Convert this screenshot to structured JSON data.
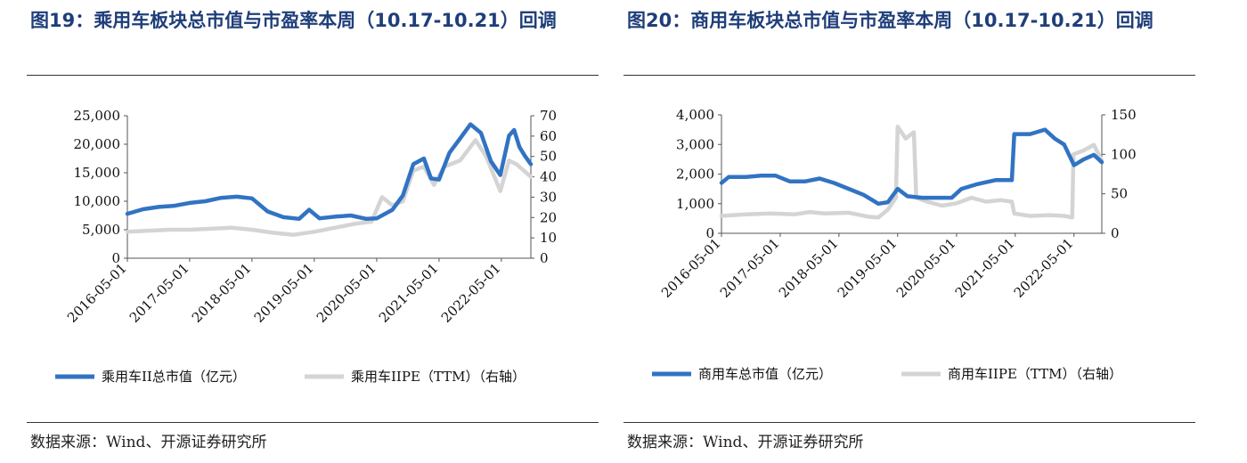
{
  "source": "数据来源：Wind、开源证券研究所",
  "colors": {
    "left_series": "#3173c3",
    "right_series": "#d4d4d4",
    "title": "#1f3e7a"
  },
  "chart_data": [
    {
      "type": "line",
      "title": "图19：乘用车板块总市值与市盈率本周（10.17-10.21）回调",
      "x_tick_labels": [
        "2016-05-01",
        "2017-05-01",
        "2018-05-01",
        "2019-05-01",
        "2020-05-01",
        "2021-05-01",
        "2022-05-01"
      ],
      "xlim": [
        "2016-05-01",
        "2022-10-21"
      ],
      "left_axis": {
        "ylim": [
          0,
          25000
        ],
        "tick_labels": [
          "0",
          "5,000",
          "10,000",
          "15,000",
          "20,000",
          "25,000"
        ]
      },
      "right_axis": {
        "ylim": [
          0,
          70
        ],
        "tick_labels": [
          "0",
          "10",
          "20",
          "30",
          "40",
          "50",
          "60",
          "70"
        ]
      },
      "legend": "bottom",
      "series": [
        {
          "name": "乘用车II总市值（亿元）",
          "axis": "left",
          "points": [
            [
              "2016-05-01",
              7800
            ],
            [
              "2016-08-01",
              8600
            ],
            [
              "2016-11-01",
              9000
            ],
            [
              "2017-02-01",
              9200
            ],
            [
              "2017-05-01",
              9700
            ],
            [
              "2017-08-01",
              10000
            ],
            [
              "2017-11-01",
              10600
            ],
            [
              "2018-02-01",
              10800
            ],
            [
              "2018-05-01",
              10500
            ],
            [
              "2018-08-01",
              8200
            ],
            [
              "2018-11-01",
              7200
            ],
            [
              "2019-02-01",
              6900
            ],
            [
              "2019-04-01",
              8500
            ],
            [
              "2019-06-01",
              7000
            ],
            [
              "2019-09-01",
              7300
            ],
            [
              "2019-12-01",
              7500
            ],
            [
              "2020-03-01",
              6900
            ],
            [
              "2020-05-01",
              7000
            ],
            [
              "2020-08-01",
              8500
            ],
            [
              "2020-10-01",
              11000
            ],
            [
              "2020-12-01",
              16500
            ],
            [
              "2021-02-01",
              17500
            ],
            [
              "2021-03-15",
              14000
            ],
            [
              "2021-05-01",
              13800
            ],
            [
              "2021-07-01",
              18500
            ],
            [
              "2021-09-01",
              21000
            ],
            [
              "2021-11-01",
              23500
            ],
            [
              "2022-01-01",
              22000
            ],
            [
              "2022-03-01",
              17000
            ],
            [
              "2022-04-25",
              14600
            ],
            [
              "2022-06-15",
              21500
            ],
            [
              "2022-07-15",
              22500
            ],
            [
              "2022-08-15",
              19500
            ],
            [
              "2022-09-15",
              18000
            ],
            [
              "2022-10-21",
              16500
            ]
          ]
        },
        {
          "name": "乘用车IIPE（TTM）（右轴）",
          "axis": "right",
          "points": [
            [
              "2016-05-01",
              13
            ],
            [
              "2016-09-01",
              13.5
            ],
            [
              "2017-01-01",
              14
            ],
            [
              "2017-05-01",
              14
            ],
            [
              "2017-09-01",
              14.5
            ],
            [
              "2018-01-01",
              15
            ],
            [
              "2018-05-01",
              14
            ],
            [
              "2018-09-01",
              12.5
            ],
            [
              "2019-01-01",
              11.5
            ],
            [
              "2019-05-01",
              13
            ],
            [
              "2019-09-01",
              15
            ],
            [
              "2020-01-01",
              17
            ],
            [
              "2020-04-01",
              18
            ],
            [
              "2020-06-01",
              30
            ],
            [
              "2020-08-01",
              26
            ],
            [
              "2020-10-01",
              28
            ],
            [
              "2020-12-01",
              43
            ],
            [
              "2021-02-01",
              45
            ],
            [
              "2021-04-01",
              36
            ],
            [
              "2021-06-01",
              45
            ],
            [
              "2021-09-01",
              48
            ],
            [
              "2021-12-01",
              58
            ],
            [
              "2022-02-01",
              50
            ],
            [
              "2022-04-25",
              33
            ],
            [
              "2022-06-15",
              48
            ],
            [
              "2022-08-01",
              46
            ],
            [
              "2022-10-21",
              40
            ]
          ]
        }
      ]
    },
    {
      "type": "line",
      "title": "图20：商用车板块总市值与市盈率本周（10.17-10.21）回调",
      "x_tick_labels": [
        "2016-05-01",
        "2017-05-01",
        "2018-05-01",
        "2019-05-01",
        "2020-05-01",
        "2021-05-01",
        "2022-05-01"
      ],
      "xlim": [
        "2016-05-01",
        "2022-10-21"
      ],
      "left_axis": {
        "ylim": [
          0,
          4000
        ],
        "tick_labels": [
          "0",
          "1,000",
          "2,000",
          "3,000",
          "4,000"
        ]
      },
      "right_axis": {
        "ylim": [
          0,
          150
        ],
        "tick_labels": [
          "0",
          "50",
          "100",
          "150"
        ]
      },
      "legend": "bottom",
      "series": [
        {
          "name": "商用车总市值（亿元）",
          "axis": "left",
          "points": [
            [
              "2016-05-01",
              1700
            ],
            [
              "2016-06-15",
              1900
            ],
            [
              "2016-10-01",
              1900
            ],
            [
              "2017-01-01",
              1950
            ],
            [
              "2017-04-01",
              1950
            ],
            [
              "2017-07-01",
              1750
            ],
            [
              "2017-10-01",
              1750
            ],
            [
              "2018-01-01",
              1850
            ],
            [
              "2018-04-01",
              1700
            ],
            [
              "2018-07-01",
              1500
            ],
            [
              "2018-10-01",
              1300
            ],
            [
              "2019-01-01",
              1000
            ],
            [
              "2019-03-01",
              1050
            ],
            [
              "2019-05-01",
              1500
            ],
            [
              "2019-07-01",
              1250
            ],
            [
              "2019-10-01",
              1200
            ],
            [
              "2020-01-01",
              1200
            ],
            [
              "2020-04-01",
              1200
            ],
            [
              "2020-06-01",
              1500
            ],
            [
              "2020-09-01",
              1650
            ],
            [
              "2021-01-01",
              1800
            ],
            [
              "2021-04-10",
              1800
            ],
            [
              "2021-04-25",
              3350
            ],
            [
              "2021-08-01",
              3350
            ],
            [
              "2021-11-01",
              3500
            ],
            [
              "2022-01-01",
              3200
            ],
            [
              "2022-03-01",
              3000
            ],
            [
              "2022-05-01",
              2300
            ],
            [
              "2022-07-01",
              2500
            ],
            [
              "2022-09-01",
              2650
            ],
            [
              "2022-10-21",
              2400
            ]
          ]
        },
        {
          "name": "商用车IIPE（TTM）（右轴）",
          "axis": "right",
          "points": [
            [
              "2016-05-01",
              22
            ],
            [
              "2016-10-01",
              24
            ],
            [
              "2017-03-01",
              25
            ],
            [
              "2017-08-01",
              24
            ],
            [
              "2017-11-01",
              27
            ],
            [
              "2018-02-01",
              25
            ],
            [
              "2018-07-01",
              26
            ],
            [
              "2018-11-01",
              21
            ],
            [
              "2019-01-01",
              20
            ],
            [
              "2019-03-01",
              30
            ],
            [
              "2019-04-20",
              45
            ],
            [
              "2019-05-01",
              135
            ],
            [
              "2019-06-20",
              120
            ],
            [
              "2019-08-10",
              128
            ],
            [
              "2019-08-25",
              45
            ],
            [
              "2019-11-01",
              40
            ],
            [
              "2020-02-01",
              35
            ],
            [
              "2020-05-01",
              38
            ],
            [
              "2020-08-01",
              45
            ],
            [
              "2020-11-01",
              40
            ],
            [
              "2021-02-01",
              42
            ],
            [
              "2021-04-10",
              40
            ],
            [
              "2021-04-25",
              25
            ],
            [
              "2021-08-01",
              22
            ],
            [
              "2021-12-01",
              23
            ],
            [
              "2022-03-01",
              22
            ],
            [
              "2022-04-20",
              20
            ],
            [
              "2022-04-28",
              100
            ],
            [
              "2022-07-01",
              105
            ],
            [
              "2022-09-01",
              112
            ],
            [
              "2022-10-21",
              92
            ]
          ]
        }
      ]
    }
  ]
}
